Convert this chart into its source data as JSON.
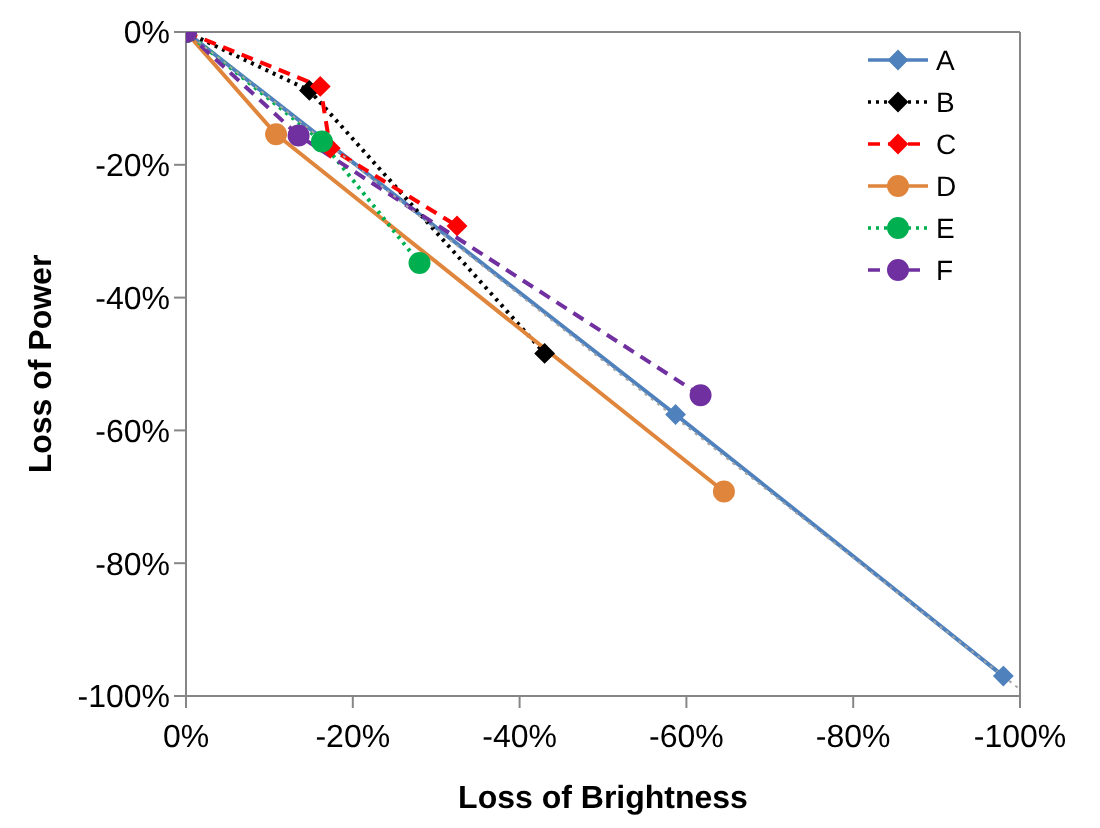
{
  "chart_data": {
    "type": "line",
    "xlabel": "Loss of Brightness",
    "ylabel": "Loss of Power",
    "xlim": [
      0,
      -100
    ],
    "ylim": [
      -100,
      0
    ],
    "xticks": [
      {
        "value": 0,
        "label": "0%"
      },
      {
        "value": -20,
        "label": "-20%"
      },
      {
        "value": -40,
        "label": "-40%"
      },
      {
        "value": -60,
        "label": "-60%"
      },
      {
        "value": -80,
        "label": "-80%"
      },
      {
        "value": -100,
        "label": "-100%"
      }
    ],
    "yticks": [
      {
        "value": 0,
        "label": "0%"
      },
      {
        "value": -20,
        "label": "-20%"
      },
      {
        "value": -40,
        "label": "-40%"
      },
      {
        "value": -60,
        "label": "-60%"
      },
      {
        "value": -80,
        "label": "-80%"
      },
      {
        "value": -100,
        "label": "-100%"
      }
    ],
    "legend": "top right",
    "series": [
      {
        "name": "A",
        "color": "#4f81bd",
        "marker": "diamond",
        "line_style": "solid",
        "x": [
          0,
          -58.7,
          -98
        ],
        "values": [
          0,
          -57.6,
          -97
        ]
      },
      {
        "name": "B",
        "color": "#000000",
        "marker": "diamond",
        "line_style": "dotted",
        "x": [
          0,
          -14.8,
          -43
        ],
        "values": [
          0,
          -8.8,
          -48.4
        ]
      },
      {
        "name": "C",
        "color": "#ff0000",
        "marker": "diamond",
        "line_style": "dashed",
        "x": [
          0,
          -16.1,
          -17.3,
          -32.5
        ],
        "values": [
          0,
          -8.2,
          -17.5,
          -29.2
        ]
      },
      {
        "name": "D",
        "color": "#e0853c",
        "marker": "circle",
        "line_style": "solid",
        "x": [
          0,
          -10.8,
          -64.5
        ],
        "values": [
          0,
          -15.4,
          -69.2
        ]
      },
      {
        "name": "E",
        "color": "#00b050",
        "marker": "circle",
        "line_style": "dotted",
        "x": [
          0,
          -16.3,
          -28
        ],
        "values": [
          0,
          -16.5,
          -34.8
        ]
      },
      {
        "name": "F",
        "color": "#7030a0",
        "marker": "circle",
        "line_style": "dashed",
        "x": [
          0,
          -13.5,
          -61.7
        ],
        "values": [
          0,
          -15.6,
          -54.7
        ]
      },
      {
        "color": "#a6a6a6",
        "marker": "none",
        "line_style": "dotted",
        "x": [
          0,
          -100
        ],
        "values": [
          0,
          -99
        ]
      }
    ]
  }
}
